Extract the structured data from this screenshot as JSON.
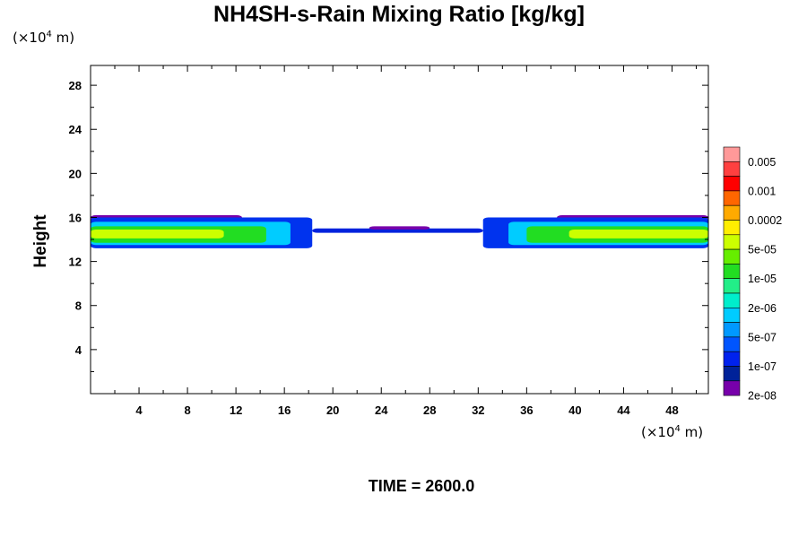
{
  "title": "NH4SH-s-Rain Mixing Ratio [kg/kg]",
  "x_unit": {
    "prefix": "(×10",
    "exp": "4",
    "suffix": " m)"
  },
  "y_unit": {
    "prefix": "(×10",
    "exp": "4",
    "suffix": " m)"
  },
  "time_label": "TIME = 2600.0",
  "chart_data": {
    "type": "heatmap",
    "title": "NH4SH-s-Rain Mixing Ratio [kg/kg]",
    "xlabel": "",
    "ylabel": "Height",
    "xlim": [
      0,
      51
    ],
    "ylim": [
      0,
      29.8
    ],
    "x_ticks": [
      4,
      8,
      12,
      16,
      20,
      24,
      28,
      32,
      36,
      40,
      44,
      48
    ],
    "y_ticks": [
      4,
      8,
      12,
      16,
      20,
      24,
      28
    ],
    "colorbar": {
      "labels": [
        "0.005",
        "0.001",
        "0.0002",
        "5e-05",
        "1e-05",
        "2e-06",
        "5e-07",
        "1e-07",
        "2e-08"
      ],
      "colors": [
        "#ff9999",
        "#ff4040",
        "#ff0000",
        "#ff6600",
        "#ffaa00",
        "#ffee00",
        "#ccff00",
        "#66ee00",
        "#22dd22",
        "#22ee88",
        "#00eecc",
        "#00ccff",
        "#0099ff",
        "#0055ff",
        "#0022ee",
        "#002299",
        "#7700aa"
      ]
    },
    "bands": [
      {
        "level": "2e-08",
        "color": "#7700aa",
        "x": [
          0,
          12.5
        ],
        "y": [
          15.8,
          16.2
        ]
      },
      {
        "level": "2e-08",
        "color": "#7700aa",
        "x": [
          38.5,
          51
        ],
        "y": [
          15.8,
          16.2
        ]
      },
      {
        "level": "1e-07",
        "color": "#0033ee",
        "x": [
          0,
          18.3
        ],
        "y": [
          13.2,
          16.0
        ]
      },
      {
        "level": "1e-07",
        "color": "#0033ee",
        "x": [
          32.4,
          51
        ],
        "y": [
          13.2,
          16.0
        ]
      },
      {
        "level": "5e-07",
        "color": "#00ccff",
        "x": [
          0,
          16.5
        ],
        "y": [
          13.5,
          15.6
        ]
      },
      {
        "level": "5e-07",
        "color": "#00ccff",
        "x": [
          34.5,
          51
        ],
        "y": [
          13.5,
          15.6
        ]
      },
      {
        "level": "1e-05",
        "color": "#22dd22",
        "x": [
          0,
          14.5
        ],
        "y": [
          13.7,
          15.2
        ]
      },
      {
        "level": "1e-05",
        "color": "#22dd22",
        "x": [
          36,
          51
        ],
        "y": [
          13.7,
          15.2
        ]
      },
      {
        "level": "5e-05",
        "color": "#ccff00",
        "x": [
          0,
          11
        ],
        "y": [
          14.1,
          14.9
        ]
      },
      {
        "level": "5e-05",
        "color": "#ccff00",
        "x": [
          39.5,
          51
        ],
        "y": [
          14.1,
          14.9
        ]
      },
      {
        "level": "1e-07",
        "color": "#0022dd",
        "x": [
          18.3,
          32.4
        ],
        "y": [
          14.6,
          15.0
        ]
      },
      {
        "level": "2e-08",
        "color": "#7700aa",
        "x": [
          23,
          28
        ],
        "y": [
          14.9,
          15.2
        ]
      }
    ]
  }
}
